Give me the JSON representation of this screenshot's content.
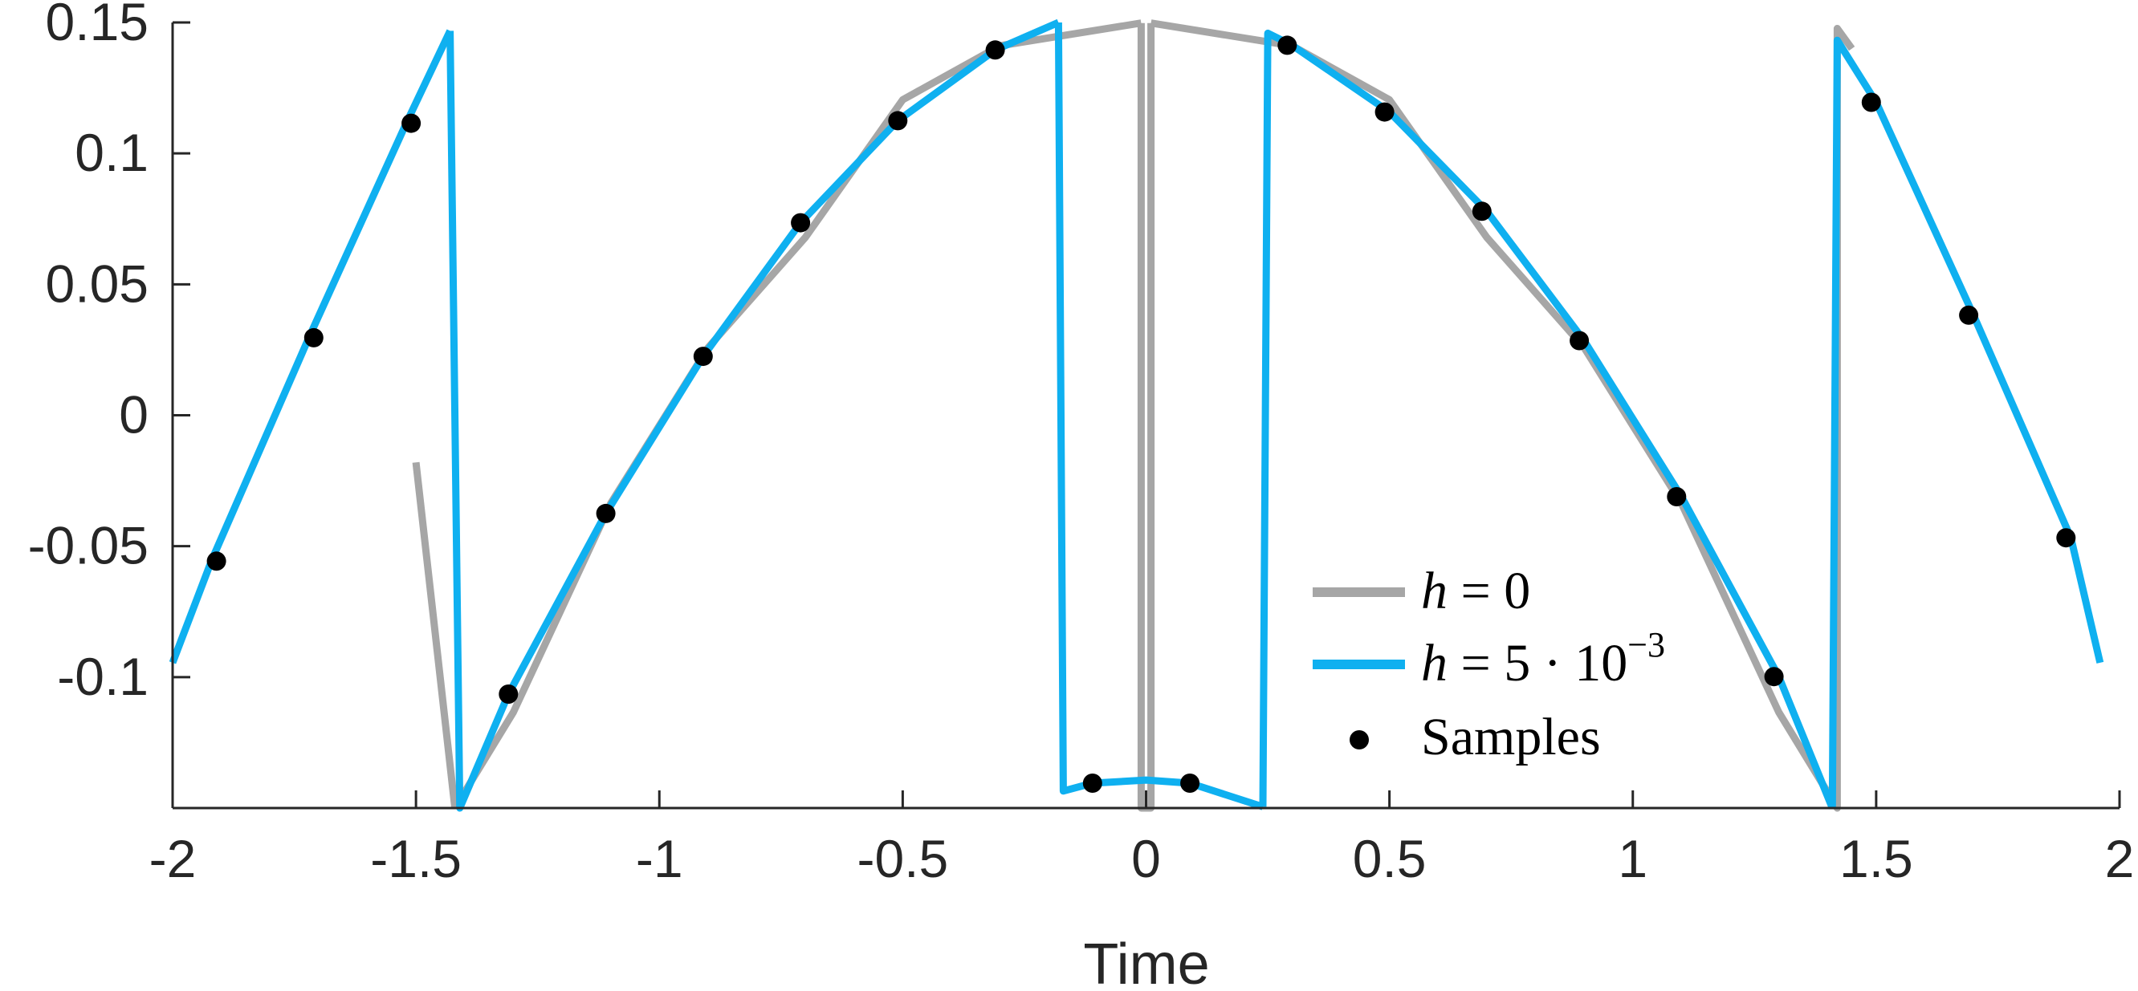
{
  "chart_data": {
    "type": "line",
    "title": "",
    "xlabel": "Time",
    "ylabel": "",
    "xlim": [
      -2,
      2
    ],
    "ylim": [
      -0.15,
      0.15
    ],
    "x_ticks": [
      -2,
      -1.5,
      -1,
      -0.5,
      0,
      0.5,
      1,
      1.5,
      2
    ],
    "x_tick_labels": [
      "-2",
      "-1.5",
      "-1",
      "-0.5",
      "0",
      "0.5",
      "1",
      "1.5",
      "2"
    ],
    "y_ticks": [
      -0.1,
      -0.05,
      0,
      0.05,
      0.1,
      0.15
    ],
    "y_tick_labels": [
      "-0.1",
      "-0.05",
      "0",
      "0.05",
      "0.1",
      "0.15"
    ],
    "grid": false,
    "legend_position": "bottom-right",
    "legend": [
      {
        "label": "h = 0",
        "math": "h",
        "rest": " = 0",
        "marker": "line",
        "color": "#a6a6a6"
      },
      {
        "label": "h = 5 · 10^−3",
        "math": "h",
        "rest": " = 5 · 10",
        "sup": "−3",
        "marker": "line",
        "color": "#0fb0f0"
      },
      {
        "label": "Samples",
        "marker": "dot",
        "color": "#000000"
      }
    ],
    "series": [
      {
        "name": "h = 0",
        "color": "#a6a6a6",
        "segments": [
          [
            [
              -1.5,
              -0.018
            ],
            [
              -1.42,
              -0.15
            ]
          ],
          [
            [
              -1.42,
              -0.15
            ],
            [
              -1.3,
              -0.1134
            ],
            [
              -1.1,
              -0.0337
            ],
            [
              -0.9,
              0.0258
            ],
            [
              -0.7,
              0.0679
            ],
            [
              -0.5,
              0.1205
            ],
            [
              -0.3,
              0.1411
            ],
            [
              -0.01,
              0.1498
            ]
          ],
          [
            [
              -0.01,
              0.1498
            ],
            [
              -0.01,
              -0.15
            ],
            [
              0.01,
              -0.15
            ],
            [
              0.01,
              0.1498
            ]
          ],
          [
            [
              0.01,
              0.1498
            ],
            [
              0.3,
              0.1411
            ],
            [
              0.5,
              0.1205
            ],
            [
              0.7,
              0.0679
            ],
            [
              0.9,
              0.0258
            ],
            [
              1.1,
              -0.0337
            ],
            [
              1.3,
              -0.1134
            ],
            [
              1.42,
              -0.15
            ],
            [
              1.42,
              0.1477
            ],
            [
              1.45,
              0.14
            ]
          ]
        ]
      },
      {
        "name": "h = 5 · 10^−3",
        "color": "#0fb0f0",
        "segments": [
          [
            [
              -2,
              -0.0945
            ],
            [
              -1.92,
              -0.0555
            ],
            [
              -1.72,
              0.0297
            ],
            [
              -1.52,
              0.1115
            ],
            [
              -1.43,
              0.1468
            ]
          ],
          [
            [
              -1.43,
              0.1468
            ],
            [
              -1.41,
              -0.15
            ],
            [
              -1.31,
              -0.1065
            ],
            [
              -1.11,
              -0.0375
            ],
            [
              -0.91,
              0.0225
            ],
            [
              -0.71,
              0.0735
            ],
            [
              -0.51,
              0.1125
            ],
            [
              -0.31,
              0.1395
            ],
            [
              -0.18,
              0.15
            ]
          ],
          [
            [
              -0.18,
              0.15
            ],
            [
              -0.17,
              -0.1435
            ],
            [
              -0.11,
              -0.1405
            ],
            [
              0.0,
              -0.1393
            ],
            [
              0.09,
              -0.1405
            ],
            [
              0.24,
              -0.1495
            ]
          ],
          [
            [
              0.24,
              -0.1495
            ],
            [
              0.25,
              0.1459
            ],
            [
              0.3,
              0.1413
            ],
            [
              0.5,
              0.1158
            ],
            [
              0.7,
              0.0779
            ],
            [
              0.9,
              0.0285
            ],
            [
              1.1,
              -0.0311
            ],
            [
              1.3,
              -0.0998
            ],
            [
              1.41,
              -0.15
            ]
          ],
          [
            [
              1.41,
              -0.15
            ],
            [
              1.42,
              0.1432
            ],
            [
              1.5,
              0.1195
            ],
            [
              1.7,
              0.0382
            ],
            [
              1.9,
              -0.0468
            ],
            [
              1.96,
              -0.0945
            ]
          ]
        ]
      },
      {
        "name": "Samples",
        "type": "scatter",
        "color": "#000000",
        "points": [
          [
            -1.91,
            -0.0557
          ],
          [
            -1.71,
            0.0296
          ],
          [
            -1.51,
            0.1115
          ],
          [
            -1.31,
            -0.1065
          ],
          [
            -1.11,
            -0.0375
          ],
          [
            -0.91,
            0.0225
          ],
          [
            -0.71,
            0.0735
          ],
          [
            -0.51,
            0.1125
          ],
          [
            -0.31,
            0.1395
          ],
          [
            -0.11,
            -0.1405
          ],
          [
            0.09,
            -0.1405
          ],
          [
            0.29,
            0.1413
          ],
          [
            0.49,
            0.1158
          ],
          [
            0.69,
            0.0779
          ],
          [
            0.89,
            0.0285
          ],
          [
            1.09,
            -0.0311
          ],
          [
            1.29,
            -0.0998
          ],
          [
            1.49,
            0.1195
          ],
          [
            1.69,
            0.0382
          ],
          [
            1.89,
            -0.0468
          ]
        ]
      }
    ]
  }
}
